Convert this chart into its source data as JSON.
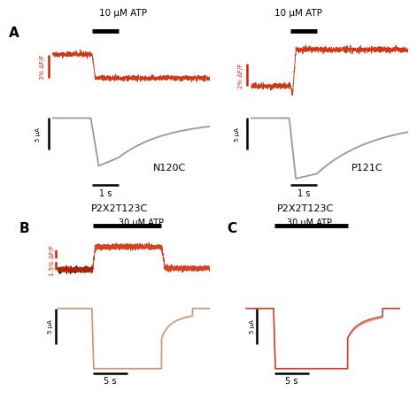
{
  "background_color": "#ffffff",
  "panel_A_left": {
    "label": "A",
    "title_bar": "10 μM ATP",
    "scale_bar_x": "1 s",
    "ylabel_current": "5 μA",
    "ylabel_fluor": "3% ΔF/F",
    "mutant": "N120C",
    "atp_bar_color": "#000000",
    "fluor_color": "#cc2200",
    "current_color": "#999999"
  },
  "panel_A_right": {
    "title_bar": "10 μM ATP",
    "scale_bar_x": "1 s",
    "ylabel_current": "5 μA",
    "ylabel_fluor": "2% ΔF/F",
    "mutant": "P121C",
    "atp_bar_color": "#000000",
    "fluor_color": "#cc2200",
    "current_color": "#999999"
  },
  "panel_B": {
    "label": "B",
    "title": "P2X2T123C",
    "title_bar": "30 μM ATP",
    "scale_bar_x": "5 s",
    "ylabel_current": "5 μA",
    "ylabel_fluor": "1.5% ΔF/F",
    "atp_bar_color": "#000000",
    "fluor_color_red": "#cc2200",
    "fluor_color_black": "#222222",
    "current_color": "#cc9988"
  },
  "panel_C": {
    "label": "C",
    "title": "P2X2T123C",
    "title_bar": "30 μM ATP",
    "scale_bar_x": "5 s",
    "ylabel_current": "5 μA",
    "atp_bar_color": "#000000",
    "current_color_light": "#dd9988",
    "current_color_dark": "#cc4433"
  }
}
